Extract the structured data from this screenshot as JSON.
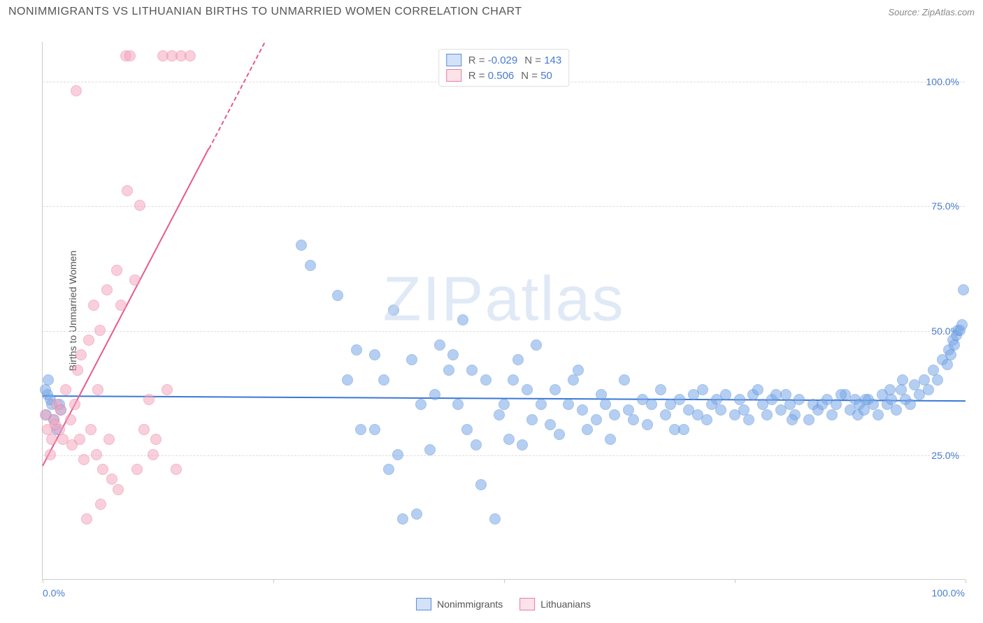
{
  "title": "NONIMMIGRANTS VS LITHUANIAN BIRTHS TO UNMARRIED WOMEN CORRELATION CHART",
  "source": "Source: ZipAtlas.com",
  "ylabel": "Births to Unmarried Women",
  "watermark": "ZIPatlas",
  "chart": {
    "type": "scatter",
    "xlim": [
      0,
      100
    ],
    "ylim": [
      0,
      108
    ],
    "x_ticks": [
      0,
      25,
      50,
      75,
      100
    ],
    "y_ticks": [
      25,
      50,
      75,
      100
    ],
    "x_tick_labels": {
      "0": "0.0%",
      "100": "100.0%"
    },
    "y_tick_labels": {
      "25": "25.0%",
      "50": "50.0%",
      "75": "75.0%",
      "100": "100.0%"
    },
    "grid_color": "#dddddd",
    "bg": "#ffffff",
    "point_radius": 8,
    "point_stroke_opacity": 0.9,
    "point_fill_opacity": 0.35
  },
  "series": [
    {
      "key": "nonimmigrants",
      "label": "Nonimmigrants",
      "color": "#7aa8e8",
      "stroke": "#5a8dd8",
      "R": "-0.029",
      "N": "143",
      "trend": {
        "x1": 0,
        "y1": 37,
        "x2": 100,
        "y2": 36,
        "color": "#3a78d6"
      },
      "points": [
        [
          28,
          67
        ],
        [
          29,
          63
        ],
        [
          32,
          57
        ],
        [
          33,
          40
        ],
        [
          34,
          46
        ],
        [
          34.5,
          30
        ],
        [
          36,
          30
        ],
        [
          36,
          45
        ],
        [
          37,
          40
        ],
        [
          37.5,
          22
        ],
        [
          38,
          54
        ],
        [
          38.5,
          25
        ],
        [
          39,
          12
        ],
        [
          40,
          44
        ],
        [
          40.5,
          13
        ],
        [
          41,
          35
        ],
        [
          42,
          26
        ],
        [
          42.5,
          37
        ],
        [
          43,
          47
        ],
        [
          44,
          42
        ],
        [
          44.5,
          45
        ],
        [
          45,
          35
        ],
        [
          45.5,
          52
        ],
        [
          46,
          30
        ],
        [
          46.5,
          42
        ],
        [
          47,
          27
        ],
        [
          47.5,
          19
        ],
        [
          48,
          40
        ],
        [
          49,
          12
        ],
        [
          49.5,
          33
        ],
        [
          50,
          35
        ],
        [
          50.5,
          28
        ],
        [
          51,
          40
        ],
        [
          51.5,
          44
        ],
        [
          52,
          27
        ],
        [
          52.5,
          38
        ],
        [
          53,
          32
        ],
        [
          53.5,
          47
        ],
        [
          54,
          35
        ],
        [
          55,
          31
        ],
        [
          55.5,
          38
        ],
        [
          56,
          29
        ],
        [
          57,
          35
        ],
        [
          57.5,
          40
        ],
        [
          58,
          42
        ],
        [
          58.5,
          34
        ],
        [
          59,
          30
        ],
        [
          60,
          32
        ],
        [
          60.5,
          37
        ],
        [
          61,
          35
        ],
        [
          61.5,
          28
        ],
        [
          62,
          33
        ],
        [
          63,
          40
        ],
        [
          63.5,
          34
        ],
        [
          64,
          32
        ],
        [
          65,
          36
        ],
        [
          65.5,
          31
        ],
        [
          66,
          35
        ],
        [
          67,
          38
        ],
        [
          67.5,
          33
        ],
        [
          68,
          35
        ],
        [
          68.5,
          30
        ],
        [
          69,
          36
        ],
        [
          70,
          34
        ],
        [
          70.5,
          37
        ],
        [
          71,
          33
        ],
        [
          71.5,
          38
        ],
        [
          72,
          32
        ],
        [
          73,
          36
        ],
        [
          73.5,
          34
        ],
        [
          74,
          37
        ],
        [
          75,
          33
        ],
        [
          75.5,
          36
        ],
        [
          76,
          34
        ],
        [
          76.5,
          32
        ],
        [
          77,
          37
        ],
        [
          78,
          35
        ],
        [
          78.5,
          33
        ],
        [
          79,
          36
        ],
        [
          80,
          34
        ],
        [
          80.5,
          37
        ],
        [
          81,
          35
        ],
        [
          81.5,
          33
        ],
        [
          82,
          36
        ],
        [
          83,
          32
        ],
        [
          83.5,
          35
        ],
        [
          84,
          34
        ],
        [
          85,
          36
        ],
        [
          85.5,
          33
        ],
        [
          86,
          35
        ],
        [
          87,
          37
        ],
        [
          87.5,
          34
        ],
        [
          88,
          36
        ],
        [
          88.3,
          33
        ],
        [
          88.5,
          35
        ],
        [
          89,
          34
        ],
        [
          89.5,
          36
        ],
        [
          90,
          35
        ],
        [
          90.5,
          33
        ],
        [
          91,
          37
        ],
        [
          91.5,
          35
        ],
        [
          92,
          36
        ],
        [
          92.5,
          34
        ],
        [
          93,
          38
        ],
        [
          93.5,
          36
        ],
        [
          94,
          35
        ],
        [
          94.5,
          39
        ],
        [
          95,
          37
        ],
        [
          95.5,
          40
        ],
        [
          96,
          38
        ],
        [
          96.5,
          42
        ],
        [
          97,
          40
        ],
        [
          97.5,
          44
        ],
        [
          98,
          43
        ],
        [
          98.2,
          46
        ],
        [
          98.4,
          45
        ],
        [
          98.6,
          48
        ],
        [
          98.8,
          47
        ],
        [
          99,
          49
        ],
        [
          99.2,
          50
        ],
        [
          99.4,
          50
        ],
        [
          99.6,
          51
        ],
        [
          99.8,
          58
        ],
        [
          0.5,
          37
        ],
        [
          1,
          35
        ],
        [
          0.8,
          36
        ],
        [
          1.2,
          32
        ],
        [
          0.3,
          38
        ],
        [
          1.5,
          30
        ],
        [
          2,
          34
        ],
        [
          0.6,
          40
        ],
        [
          1.8,
          35
        ],
        [
          0.4,
          33
        ],
        [
          69.5,
          30
        ],
        [
          72.5,
          35
        ],
        [
          77.5,
          38
        ],
        [
          79.5,
          37
        ],
        [
          81.2,
          32
        ],
        [
          84.5,
          35
        ],
        [
          86.5,
          37
        ],
        [
          89.2,
          36
        ],
        [
          91.8,
          38
        ],
        [
          93.2,
          40
        ]
      ]
    },
    {
      "key": "lithuanians",
      "label": "Lithuanians",
      "color": "#f5a8be",
      "stroke": "#ea7da0",
      "R": "0.506",
      "N": "50",
      "trend": {
        "x1": 0,
        "y1": 23,
        "x2": 24,
        "y2": 108,
        "color": "#e85a8a",
        "dash_after_x": 18
      },
      "points": [
        [
          0.5,
          30
        ],
        [
          1,
          28
        ],
        [
          1.2,
          32
        ],
        [
          1.5,
          35
        ],
        [
          0.8,
          25
        ],
        [
          1.8,
          30
        ],
        [
          2,
          34
        ],
        [
          2.2,
          28
        ],
        [
          0.3,
          33
        ],
        [
          1.4,
          31
        ],
        [
          2.5,
          38
        ],
        [
          3,
          32
        ],
        [
          3.2,
          27
        ],
        [
          3.5,
          35
        ],
        [
          3.8,
          42
        ],
        [
          4,
          28
        ],
        [
          4.2,
          45
        ],
        [
          4.5,
          24
        ],
        [
          5,
          48
        ],
        [
          5.2,
          30
        ],
        [
          5.5,
          55
        ],
        [
          5.8,
          25
        ],
        [
          6,
          38
        ],
        [
          6.2,
          50
        ],
        [
          6.5,
          22
        ],
        [
          7,
          58
        ],
        [
          7.2,
          28
        ],
        [
          7.5,
          20
        ],
        [
          8,
          62
        ],
        [
          8.2,
          18
        ],
        [
          8.5,
          55
        ],
        [
          9,
          105
        ],
        [
          9.2,
          78
        ],
        [
          9.5,
          105
        ],
        [
          10,
          60
        ],
        [
          10.2,
          22
        ],
        [
          10.5,
          75
        ],
        [
          11,
          30
        ],
        [
          11.5,
          36
        ],
        [
          12,
          25
        ],
        [
          12.3,
          28
        ],
        [
          13,
          105
        ],
        [
          13.5,
          38
        ],
        [
          14,
          105
        ],
        [
          14.5,
          22
        ],
        [
          15,
          105
        ],
        [
          16,
          105
        ],
        [
          3.6,
          98
        ],
        [
          6.3,
          15
        ],
        [
          4.8,
          12
        ]
      ]
    }
  ]
}
